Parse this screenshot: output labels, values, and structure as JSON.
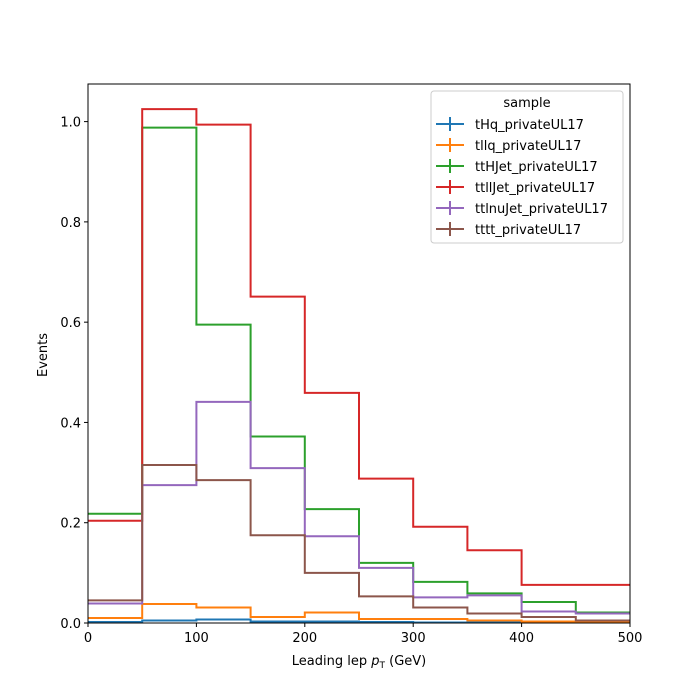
{
  "chart_data": {
    "type": "step-histogram",
    "xlabel": "Leading lep p_T (GeV)",
    "xlabel_main": "Leading lep ",
    "xlabel_sym": "p",
    "xlabel_sub": "T",
    "xlabel_unit": " (GeV)",
    "ylabel": "Events",
    "xlim": [
      0,
      500
    ],
    "ylim": [
      0,
      1.075
    ],
    "xticks": [
      "0",
      "100",
      "200",
      "300",
      "400",
      "500"
    ],
    "yticks": [
      "0.0",
      "0.2",
      "0.4",
      "0.6",
      "0.8",
      "1.0"
    ],
    "bin_edges": [
      0,
      50,
      100,
      150,
      200,
      250,
      300,
      350,
      400,
      450,
      500
    ],
    "legend": {
      "title": "sample",
      "location": "top-right"
    },
    "series": [
      {
        "name": "tHq_privateUL17",
        "color": "#1f77b4",
        "values": [
          0.002,
          0.005,
          0.007,
          0.003,
          0.003,
          0.002,
          0.001,
          0.001,
          0.001,
          0.001
        ]
      },
      {
        "name": "tllq_privateUL17",
        "color": "#ff7f0e",
        "values": [
          0.01,
          0.038,
          0.031,
          0.012,
          0.021,
          0.008,
          0.008,
          0.005,
          0.003,
          0.003
        ]
      },
      {
        "name": "ttHJet_privateUL17",
        "color": "#2ca02c",
        "values": [
          0.218,
          0.988,
          0.595,
          0.372,
          0.227,
          0.12,
          0.082,
          0.059,
          0.042,
          0.021
        ]
      },
      {
        "name": "ttllJet_privateUL17",
        "color": "#d62728",
        "values": [
          0.204,
          1.025,
          0.994,
          0.651,
          0.459,
          0.288,
          0.192,
          0.145,
          0.076,
          0.076
        ]
      },
      {
        "name": "ttlnuJet_privateUL17",
        "color": "#9467bd",
        "values": [
          0.039,
          0.275,
          0.441,
          0.309,
          0.173,
          0.11,
          0.051,
          0.055,
          0.023,
          0.019
        ]
      },
      {
        "name": "tttt_privateUL17",
        "color": "#8c564b",
        "values": [
          0.045,
          0.315,
          0.285,
          0.175,
          0.1,
          0.053,
          0.031,
          0.019,
          0.012,
          0.005
        ]
      }
    ]
  }
}
